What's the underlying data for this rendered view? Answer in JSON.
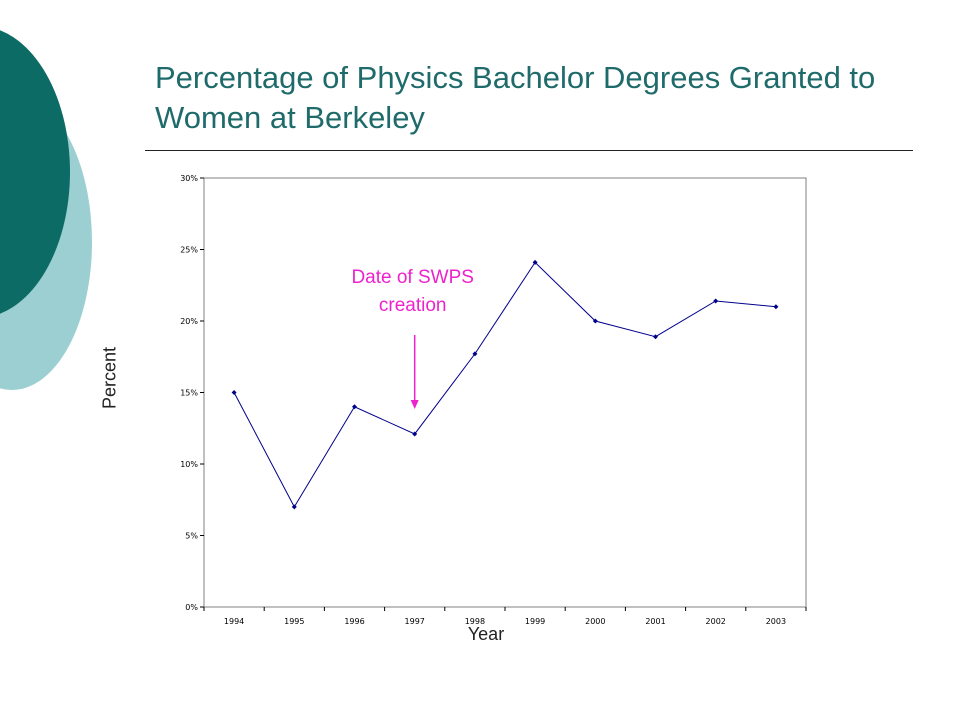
{
  "slide": {
    "title": "Percentage of Physics Bachelor Degrees Granted to Women at Berkeley"
  },
  "colors": {
    "title": "#1f6b6b",
    "deco_dark": "#0d6b66",
    "deco_light": "#9ccfd1",
    "line": "#00008b",
    "annotation": "#ee22cc"
  },
  "chart_data": {
    "type": "line",
    "title": "",
    "xlabel": "Year",
    "ylabel": "Percent",
    "categories": [
      "1994",
      "1995",
      "1996",
      "1997",
      "1998",
      "1999",
      "2000",
      "2001",
      "2002",
      "2003"
    ],
    "series": [
      {
        "values": [
          15.0,
          7.0,
          14.0,
          12.1,
          17.7,
          24.1,
          20.0,
          18.9,
          21.4,
          21.0
        ]
      }
    ],
    "ylim": [
      0,
      30
    ],
    "yticks": [
      "0%",
      "5%",
      "10%",
      "15%",
      "20%",
      "25%",
      "30%"
    ],
    "grid": false,
    "annotation": {
      "text_line1": "Date of SWPS",
      "text_line2": "creation",
      "points_to": "1997"
    }
  }
}
